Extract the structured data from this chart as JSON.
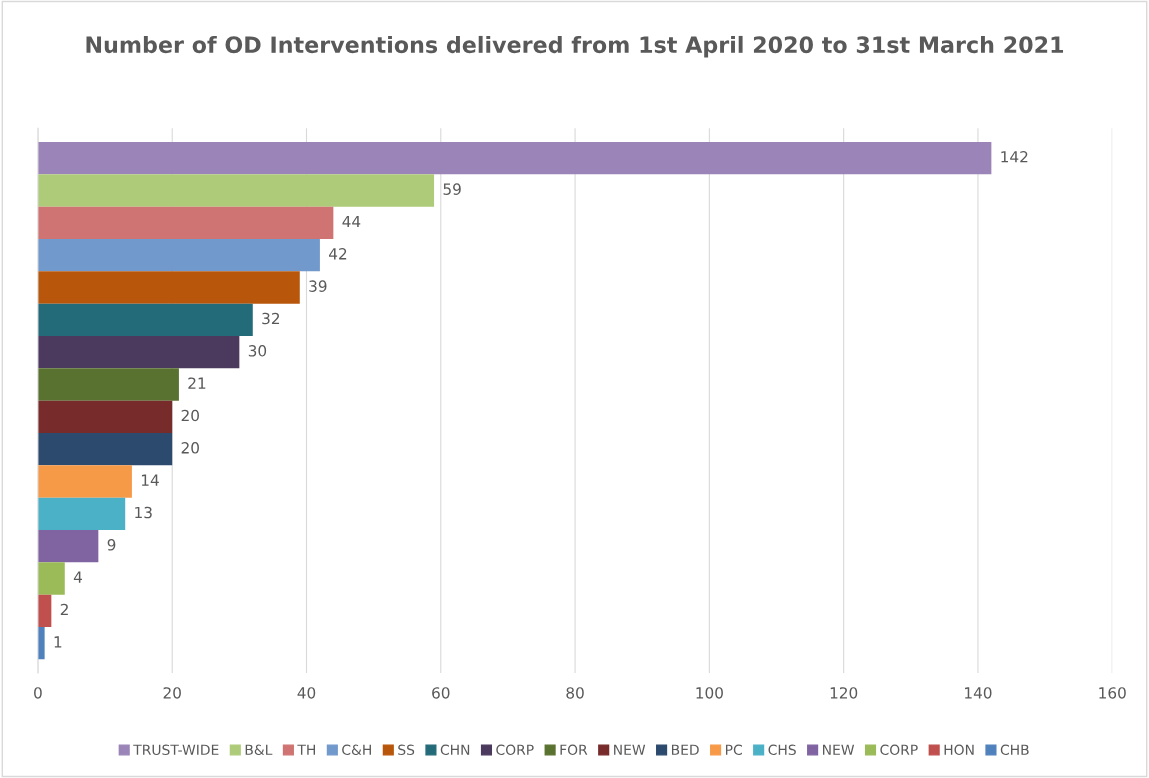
{
  "chart_data": {
    "type": "bar",
    "orientation": "horizontal",
    "title": "Number of OD Interventions delivered from 1st April 2020 to 31st March 2021",
    "categories": [
      null
    ],
    "series": [
      {
        "name": "TRUST-WIDE",
        "color": "#9b85b8",
        "values": [
          142
        ]
      },
      {
        "name": "B&L",
        "color": "#aecb7a",
        "values": [
          59
        ]
      },
      {
        "name": "TH",
        "color": "#cf7472",
        "values": [
          44
        ]
      },
      {
        "name": "C&H",
        "color": "#7299cc",
        "values": [
          42
        ]
      },
      {
        "name": "SS",
        "color": "#b8570b",
        "values": [
          39
        ]
      },
      {
        "name": "CHN",
        "color": "#246b7a",
        "values": [
          32
        ]
      },
      {
        "name": "CORP",
        "color": "#4b3a5e",
        "values": [
          30
        ]
      },
      {
        "name": "FOR",
        "color": "#5a7230",
        "values": [
          21
        ]
      },
      {
        "name": "NEW",
        "color": "#782b2b",
        "values": [
          20
        ]
      },
      {
        "name": "BED",
        "color": "#2c4a6e",
        "values": [
          20
        ]
      },
      {
        "name": "PC",
        "color": "#f79a48",
        "values": [
          14
        ]
      },
      {
        "name": "CHS",
        "color": "#4bb1c7",
        "values": [
          13
        ]
      },
      {
        "name": "NEW",
        "color": "#8064a2",
        "values": [
          9
        ]
      },
      {
        "name": "CORP",
        "color": "#9bbb59",
        "values": [
          4
        ]
      },
      {
        "name": "HON",
        "color": "#c0504d",
        "values": [
          2
        ]
      },
      {
        "name": "CHB",
        "color": "#4f81bd",
        "values": [
          1
        ]
      }
    ],
    "xlim": [
      0,
      160
    ],
    "xticks": [
      0,
      20,
      40,
      60,
      80,
      100,
      120,
      140,
      160
    ],
    "grid": "x",
    "legend": "bottom",
    "data_labels": true,
    "tick_labels": "x"
  }
}
